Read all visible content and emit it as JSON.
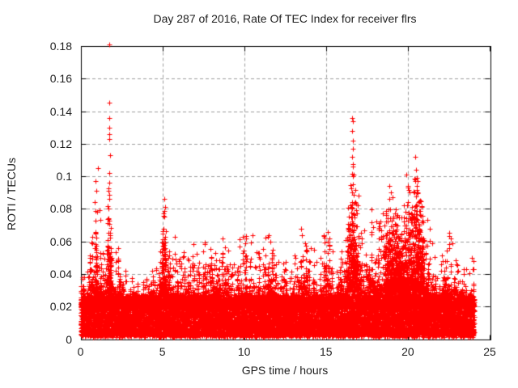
{
  "figure": {
    "background": "#ffffff",
    "text_color": "#1e1e1e"
  },
  "chart_data": {
    "type": "scatter",
    "title": "Day 287 of 2016, Rate Of TEC Index for receiver flrs",
    "xlabel": "GPS time / hours",
    "ylabel": "ROTI / TECUs",
    "xlim": [
      0,
      25
    ],
    "ylim": [
      0,
      0.18
    ],
    "xticks": [
      {
        "v": 0,
        "label": "0"
      },
      {
        "v": 5,
        "label": "5"
      },
      {
        "v": 10,
        "label": "10"
      },
      {
        "v": 15,
        "label": "15"
      },
      {
        "v": 20,
        "label": "20"
      },
      {
        "v": 25,
        "label": "25"
      }
    ],
    "yticks": [
      {
        "v": 0.0,
        "label": "0"
      },
      {
        "v": 0.02,
        "label": "0.02"
      },
      {
        "v": 0.04,
        "label": "0.04"
      },
      {
        "v": 0.06,
        "label": "0.06"
      },
      {
        "v": 0.08,
        "label": "0.08"
      },
      {
        "v": 0.1,
        "label": "0.1"
      },
      {
        "v": 0.12,
        "label": "0.12"
      },
      {
        "v": 0.14,
        "label": "0.14"
      },
      {
        "v": 0.16,
        "label": "0.16"
      },
      {
        "v": 0.18,
        "label": "0.18"
      }
    ],
    "grid": true,
    "grid_color": "#9c9c9c",
    "axis_color": "#000000",
    "marker": "plus",
    "marker_color": "#ff0000",
    "marker_size": 7,
    "legend": "none",
    "time_range_of_data": [
      0.0,
      24.05
    ],
    "series": [
      {
        "name": "ROTI",
        "baseline_band": [
          0.002,
          0.022
        ],
        "envelope": [
          [
            0.0,
            0.034
          ],
          [
            0.3,
            0.04
          ],
          [
            0.7,
            0.056
          ],
          [
            0.95,
            0.072
          ],
          [
            1.2,
            0.056
          ],
          [
            1.5,
            0.048
          ],
          [
            1.75,
            0.088
          ],
          [
            2.0,
            0.05
          ],
          [
            2.35,
            0.053
          ],
          [
            2.7,
            0.038
          ],
          [
            3.2,
            0.033
          ],
          [
            3.7,
            0.035
          ],
          [
            4.2,
            0.038
          ],
          [
            4.7,
            0.042
          ],
          [
            5.1,
            0.078
          ],
          [
            5.45,
            0.046
          ],
          [
            5.75,
            0.056
          ],
          [
            6.1,
            0.042
          ],
          [
            6.5,
            0.05
          ],
          [
            6.9,
            0.052
          ],
          [
            7.3,
            0.042
          ],
          [
            7.75,
            0.054
          ],
          [
            8.1,
            0.046
          ],
          [
            8.7,
            0.056
          ],
          [
            9.2,
            0.043
          ],
          [
            9.85,
            0.056
          ],
          [
            10.4,
            0.058
          ],
          [
            10.9,
            0.046
          ],
          [
            11.5,
            0.058
          ],
          [
            12.0,
            0.048
          ],
          [
            12.5,
            0.05
          ],
          [
            13.0,
            0.046
          ],
          [
            13.5,
            0.062
          ],
          [
            13.9,
            0.052
          ],
          [
            14.4,
            0.047
          ],
          [
            15.1,
            0.06
          ],
          [
            15.6,
            0.048
          ],
          [
            16.1,
            0.05
          ],
          [
            16.6,
            0.098
          ],
          [
            17.0,
            0.066
          ],
          [
            17.5,
            0.058
          ],
          [
            17.9,
            0.068
          ],
          [
            18.4,
            0.062
          ],
          [
            18.8,
            0.076
          ],
          [
            19.2,
            0.072
          ],
          [
            19.6,
            0.068
          ],
          [
            20.1,
            0.086
          ],
          [
            20.55,
            0.092
          ],
          [
            21.0,
            0.068
          ],
          [
            21.4,
            0.054
          ],
          [
            21.9,
            0.042
          ],
          [
            22.4,
            0.056
          ],
          [
            22.8,
            0.056
          ],
          [
            23.2,
            0.04
          ],
          [
            23.6,
            0.037
          ],
          [
            24.0,
            0.042
          ]
        ],
        "outliers": [
          [
            0.88,
            0.084
          ],
          [
            0.93,
            0.097
          ],
          [
            0.98,
            0.091
          ],
          [
            1.04,
            0.105
          ],
          [
            1.15,
            0.079
          ],
          [
            1.22,
            0.073
          ],
          [
            1.76,
            0.181
          ],
          [
            1.78,
            0.145
          ],
          [
            1.77,
            0.136
          ],
          [
            1.78,
            0.13
          ],
          [
            1.76,
            0.126
          ],
          [
            1.77,
            0.123
          ],
          [
            1.79,
            0.113
          ],
          [
            1.76,
            0.102
          ],
          [
            1.74,
            0.096
          ],
          [
            2.32,
            0.056
          ],
          [
            5.08,
            0.077
          ],
          [
            5.12,
            0.086
          ],
          [
            5.16,
            0.081
          ],
          [
            5.75,
            0.063
          ],
          [
            8.7,
            0.062
          ],
          [
            9.9,
            0.063
          ],
          [
            10.5,
            0.064
          ],
          [
            11.45,
            0.063
          ],
          [
            11.6,
            0.06
          ],
          [
            13.48,
            0.068
          ],
          [
            13.55,
            0.064
          ],
          [
            14.05,
            0.056
          ],
          [
            15.12,
            0.066
          ],
          [
            15.2,
            0.062
          ],
          [
            16.6,
            0.136
          ],
          [
            16.63,
            0.134
          ],
          [
            16.61,
            0.128
          ],
          [
            16.62,
            0.122
          ],
          [
            16.64,
            0.117
          ],
          [
            16.6,
            0.112
          ],
          [
            16.63,
            0.106
          ],
          [
            16.62,
            0.1
          ],
          [
            16.65,
            0.095
          ],
          [
            16.6,
            0.09
          ],
          [
            16.95,
            0.082
          ],
          [
            17.0,
            0.088
          ],
          [
            18.85,
            0.094
          ],
          [
            18.95,
            0.09
          ],
          [
            19.05,
            0.087
          ],
          [
            19.9,
            0.101
          ],
          [
            20.0,
            0.094
          ],
          [
            20.1,
            0.09
          ],
          [
            20.45,
            0.112
          ],
          [
            20.5,
            0.104
          ],
          [
            20.47,
            0.098
          ],
          [
            20.55,
            0.094
          ],
          [
            20.6,
            0.09
          ],
          [
            21.2,
            0.073
          ],
          [
            21.35,
            0.068
          ],
          [
            22.65,
            0.062
          ],
          [
            22.72,
            0.059
          ],
          [
            23.9,
            0.05
          ]
        ],
        "render": {
          "columns": 1250,
          "seed": 1287,
          "points_per_column": 15
        }
      }
    ]
  }
}
